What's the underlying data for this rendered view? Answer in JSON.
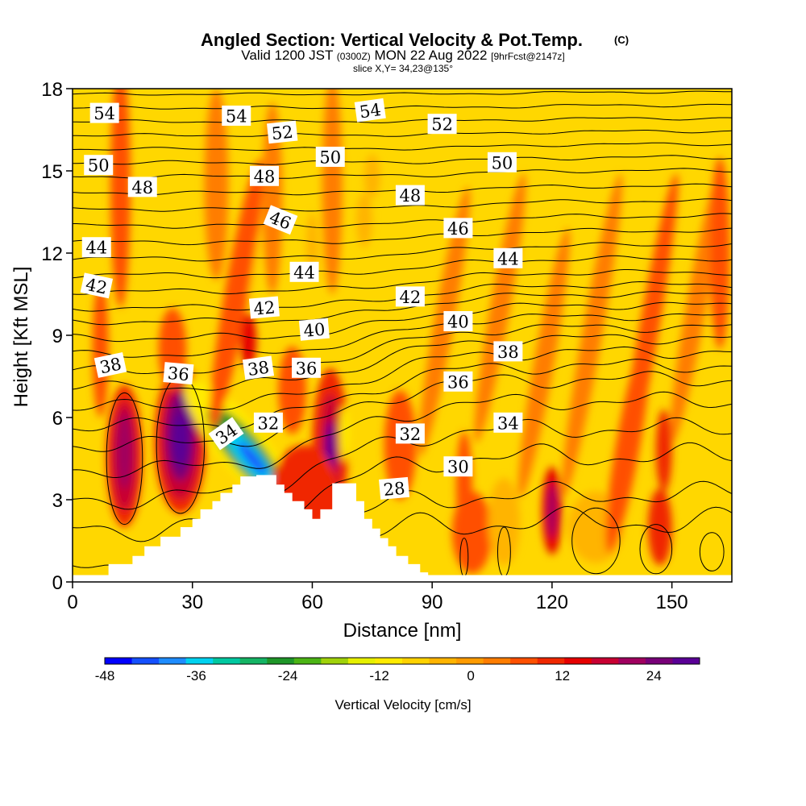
{
  "chart_data": {
    "type": "heatmap",
    "title": "Angled Section: Vertical Velocity & Pot.Temp.",
    "title_mark": "(C)",
    "subtitle_main_a": "Valid 1200 JST",
    "subtitle_small_a": "(0300Z)",
    "subtitle_main_b": "MON 22 Aug 2022",
    "subtitle_small_b": "[9hrFcst@2147z]",
    "slice": "slice X,Y= 34,23@135°",
    "xlabel": "Distance [nm]",
    "ylabel": "Height [Kft MSL]",
    "xlim": [
      0,
      165
    ],
    "ylim": [
      0,
      18
    ],
    "x_ticks": [
      {
        "value": 0,
        "label": "0"
      },
      {
        "value": 30,
        "label": "30"
      },
      {
        "value": 60,
        "label": "60"
      },
      {
        "value": 90,
        "label": "90"
      },
      {
        "value": 120,
        "label": "120"
      },
      {
        "value": 150,
        "label": "150"
      }
    ],
    "y_ticks": [
      {
        "value": 0,
        "label": "0"
      },
      {
        "value": 3,
        "label": "3"
      },
      {
        "value": 6,
        "label": "6"
      },
      {
        "value": 9,
        "label": "9"
      },
      {
        "value": 12,
        "label": "12"
      },
      {
        "value": 15,
        "label": "15"
      },
      {
        "value": 18,
        "label": "18"
      }
    ],
    "background_color": "#ffd700",
    "colorbar": {
      "label": "Vertical Velocity [cm/s]",
      "min": -48,
      "max": 30,
      "colors": [
        "#0000ff",
        "#1450ff",
        "#1e8cff",
        "#00d2f0",
        "#00c8a0",
        "#14b464",
        "#1e9628",
        "#4bb414",
        "#a0d20a",
        "#e6f000",
        "#ffeb00",
        "#ffd200",
        "#ffb400",
        "#ff9b00",
        "#ff7d00",
        "#ff5000",
        "#f02800",
        "#e60000",
        "#c80032",
        "#a0005f",
        "#780078",
        "#5a0096"
      ],
      "ticks": [
        {
          "value": -48,
          "label": "-48"
        },
        {
          "value": -36,
          "label": "-36"
        },
        {
          "value": -24,
          "label": "-24"
        },
        {
          "value": -12,
          "label": "-12"
        },
        {
          "value": 0,
          "label": "0"
        },
        {
          "value": 12,
          "label": "12"
        },
        {
          "value": 24,
          "label": "24"
        }
      ]
    },
    "terrain": [
      {
        "x": 0,
        "h": 0.25
      },
      {
        "x": 9,
        "h": 0.25
      },
      {
        "x": 9,
        "h": 0.65
      },
      {
        "x": 15,
        "h": 0.65
      },
      {
        "x": 15,
        "h": 0.95
      },
      {
        "x": 18,
        "h": 0.95
      },
      {
        "x": 18,
        "h": 1.3
      },
      {
        "x": 22,
        "h": 1.3
      },
      {
        "x": 22,
        "h": 1.65
      },
      {
        "x": 27,
        "h": 1.65
      },
      {
        "x": 27,
        "h": 2.0
      },
      {
        "x": 30,
        "h": 2.0
      },
      {
        "x": 30,
        "h": 2.3
      },
      {
        "x": 32,
        "h": 2.3
      },
      {
        "x": 32,
        "h": 2.65
      },
      {
        "x": 35,
        "h": 2.65
      },
      {
        "x": 35,
        "h": 2.95
      },
      {
        "x": 37,
        "h": 2.95
      },
      {
        "x": 37,
        "h": 3.25
      },
      {
        "x": 40,
        "h": 3.25
      },
      {
        "x": 40,
        "h": 3.55
      },
      {
        "x": 42,
        "h": 3.55
      },
      {
        "x": 42,
        "h": 3.85
      },
      {
        "x": 46,
        "h": 3.85
      },
      {
        "x": 46,
        "h": 3.9
      },
      {
        "x": 51,
        "h": 3.9
      },
      {
        "x": 51,
        "h": 3.55
      },
      {
        "x": 53,
        "h": 3.55
      },
      {
        "x": 53,
        "h": 3.25
      },
      {
        "x": 55,
        "h": 3.25
      },
      {
        "x": 55,
        "h": 2.95
      },
      {
        "x": 58,
        "h": 2.95
      },
      {
        "x": 58,
        "h": 2.65
      },
      {
        "x": 60,
        "h": 2.65
      },
      {
        "x": 60,
        "h": 2.3
      },
      {
        "x": 62,
        "h": 2.3
      },
      {
        "x": 62,
        "h": 2.65
      },
      {
        "x": 65,
        "h": 2.65
      },
      {
        "x": 65,
        "h": 3.6
      },
      {
        "x": 71,
        "h": 3.6
      },
      {
        "x": 71,
        "h": 2.95
      },
      {
        "x": 73,
        "h": 2.95
      },
      {
        "x": 73,
        "h": 2.3
      },
      {
        "x": 75,
        "h": 2.3
      },
      {
        "x": 75,
        "h": 1.95
      },
      {
        "x": 77,
        "h": 1.95
      },
      {
        "x": 77,
        "h": 1.6
      },
      {
        "x": 79,
        "h": 1.6
      },
      {
        "x": 79,
        "h": 1.3
      },
      {
        "x": 81,
        "h": 1.3
      },
      {
        "x": 81,
        "h": 0.95
      },
      {
        "x": 84,
        "h": 0.95
      },
      {
        "x": 84,
        "h": 0.65
      },
      {
        "x": 87,
        "h": 0.65
      },
      {
        "x": 87,
        "h": 0.35
      },
      {
        "x": 89,
        "h": 0.35
      },
      {
        "x": 89,
        "h": 0.25
      },
      {
        "x": 165,
        "h": 0.25
      }
    ],
    "velocity_cells": [
      {
        "x": 13,
        "y": 4.6,
        "rx": 4.5,
        "ry": 2.6,
        "w": 10,
        "rot": 0
      },
      {
        "x": 13,
        "y": 4.6,
        "rx": 3.2,
        "ry": 2.0,
        "w": 16,
        "rot": 0
      },
      {
        "x": 13,
        "y": 4.8,
        "rx": 1.8,
        "ry": 1.4,
        "w": 20,
        "rot": 0
      },
      {
        "x": 27,
        "y": 5.2,
        "rx": 6.5,
        "ry": 2.7,
        "w": 12,
        "rot": 0
      },
      {
        "x": 27,
        "y": 5.2,
        "rx": 5.0,
        "ry": 2.2,
        "w": 18,
        "rot": 0
      },
      {
        "x": 27,
        "y": 5.3,
        "rx": 3.5,
        "ry": 1.6,
        "w": 24,
        "rot": 0
      },
      {
        "x": 27,
        "y": 5.2,
        "rx": 2.0,
        "ry": 1.0,
        "w": 28,
        "rot": 0
      },
      {
        "x": 42,
        "y": 5.0,
        "rx": 6,
        "ry": 3.0,
        "w": -12,
        "rot": -40
      },
      {
        "x": 43,
        "y": 4.8,
        "rx": 4.2,
        "ry": 2.0,
        "w": -24,
        "rot": -40
      },
      {
        "x": 44,
        "y": 4.6,
        "rx": 2.6,
        "ry": 1.3,
        "w": -36,
        "rot": -40
      },
      {
        "x": 45,
        "y": 4.5,
        "rx": 1.4,
        "ry": 0.8,
        "w": -44,
        "rot": -40
      },
      {
        "x": 64.5,
        "y": 5.0,
        "rx": 4.5,
        "ry": 2.8,
        "w": 10,
        "rot": 0
      },
      {
        "x": 64.5,
        "y": 4.9,
        "rx": 2.5,
        "ry": 2.0,
        "w": 18,
        "rot": 0
      },
      {
        "x": 64.5,
        "y": 4.7,
        "rx": 1.2,
        "ry": 1.2,
        "w": 28,
        "rot": 0
      },
      {
        "x": 58,
        "y": 3.4,
        "rx": 8,
        "ry": 1.6,
        "w": 10,
        "rot": 0
      },
      {
        "x": 68,
        "y": 5.4,
        "rx": 1.2,
        "ry": 1.0,
        "w": -12,
        "rot": 0
      },
      {
        "x": 44,
        "y": 12.0,
        "rx": 2.8,
        "ry": 1.6,
        "w": -8,
        "rot": 0
      },
      {
        "x": 44,
        "y": 12.0,
        "rx": 1.3,
        "ry": 0.9,
        "w": -14,
        "rot": 0
      },
      {
        "x": 41,
        "y": 10.5,
        "rx": 3,
        "ry": 5,
        "w": 8,
        "rot": 10
      },
      {
        "x": 44,
        "y": 8.8,
        "rx": 2,
        "ry": 1.0,
        "w": 14,
        "rot": 0
      },
      {
        "x": 120,
        "y": 2.6,
        "rx": 2.5,
        "ry": 1.6,
        "w": 14,
        "rot": 0
      },
      {
        "x": 120,
        "y": 2.6,
        "rx": 1.2,
        "ry": 1.0,
        "w": 20,
        "rot": 0
      },
      {
        "x": 131,
        "y": 2.0,
        "rx": 7,
        "ry": 1.3,
        "w": -4,
        "rot": 0
      },
      {
        "x": 100,
        "y": 1.8,
        "rx": 5,
        "ry": 1.5,
        "w": 6,
        "rot": 0
      },
      {
        "x": 108,
        "y": 2.2,
        "rx": 4,
        "ry": 1.6,
        "w": -3,
        "rot": 0
      },
      {
        "x": 147,
        "y": 2.0,
        "rx": 3,
        "ry": 1.4,
        "w": 10,
        "rot": 0
      },
      {
        "x": 73,
        "y": 13.2,
        "rx": 2,
        "ry": 1.0,
        "w": -3,
        "rot": 0
      },
      {
        "x": 75,
        "y": 14.8,
        "rx": 2,
        "ry": 0.8,
        "w": -3,
        "rot": 0
      },
      {
        "x": 60,
        "y": 12.3,
        "rx": 1.5,
        "ry": 1.2,
        "w": -2,
        "rot": 0
      },
      {
        "x": 12,
        "y": 14.5,
        "rx": 2.5,
        "ry": 4.5,
        "w": 6,
        "rot": 0
      },
      {
        "x": 36,
        "y": 14.5,
        "rx": 3,
        "ry": 3.5,
        "w": 5,
        "rot": 0
      },
      {
        "x": 50,
        "y": 14.0,
        "rx": 2.5,
        "ry": 3.5,
        "w": 5,
        "rot": 0
      },
      {
        "x": 65,
        "y": 14.5,
        "rx": 2.5,
        "ry": 4,
        "w": 5,
        "rot": 0
      },
      {
        "x": 93,
        "y": 9.5,
        "rx": 2.5,
        "ry": 5,
        "w": 5,
        "rot": 10
      },
      {
        "x": 107,
        "y": 10.0,
        "rx": 2.5,
        "ry": 5,
        "w": 5,
        "rot": 10
      },
      {
        "x": 118,
        "y": 8.0,
        "rx": 2.5,
        "ry": 5,
        "w": 5,
        "rot": 10
      },
      {
        "x": 130,
        "y": 9.0,
        "rx": 2.5,
        "ry": 6,
        "w": 5,
        "rot": 10
      },
      {
        "x": 144,
        "y": 9.0,
        "rx": 2.5,
        "ry": 6,
        "w": 6,
        "rot": 10
      },
      {
        "x": 156,
        "y": 10.0,
        "rx": 2.5,
        "ry": 5,
        "w": 5,
        "rot": 10
      },
      {
        "x": 139,
        "y": 5.0,
        "rx": 3,
        "ry": 4,
        "w": 6,
        "rot": 10
      },
      {
        "x": 98,
        "y": 3.5,
        "rx": 2,
        "ry": 2,
        "w": 8,
        "rot": 0
      },
      {
        "x": 148,
        "y": 4.8,
        "rx": 2,
        "ry": 1.5,
        "w": 10,
        "rot": 0
      },
      {
        "x": 7,
        "y": 8.5,
        "rx": 2,
        "ry": 2.5,
        "w": 8,
        "rot": 0
      },
      {
        "x": 25,
        "y": 8.5,
        "rx": 3.5,
        "ry": 1.5,
        "w": 6,
        "rot": 0
      },
      {
        "x": 55,
        "y": 7.0,
        "rx": 3.5,
        "ry": 1.6,
        "w": 6,
        "rot": 0
      },
      {
        "x": 82,
        "y": 5.0,
        "rx": 4,
        "ry": 2,
        "w": 6,
        "rot": 0
      },
      {
        "x": 162,
        "y": 12.0,
        "rx": 2.5,
        "ry": 3.5,
        "w": 7,
        "rot": 0
      }
    ],
    "theta_levels": [
      {
        "theta": 28,
        "y0": -0.8,
        "x1": 58,
        "b": 3.0,
        "s": 11,
        "amp": 0.35
      },
      {
        "theta": 29,
        "y0": 0.4,
        "x1": 60,
        "b": 2.8,
        "s": 11,
        "amp": 0.3
      },
      {
        "theta": 30,
        "y0": 1.9,
        "x1": 62,
        "b": 2.7,
        "s": 11,
        "amp": 0.3
      },
      {
        "theta": 31,
        "y0": 3.0,
        "x1": 64,
        "b": 2.6,
        "s": 11,
        "amp": 0.25
      },
      {
        "theta": 32,
        "y0": 4.1,
        "x1": 66,
        "b": 2.5,
        "s": 11,
        "amp": 0.22
      },
      {
        "theta": 33,
        "y0": 5.0,
        "x1": 68,
        "b": 2.4,
        "s": 11,
        "amp": 0.2
      },
      {
        "theta": 34,
        "y0": 5.7,
        "x1": 70,
        "b": 2.2,
        "s": 11,
        "amp": 0.18
      },
      {
        "theta": 35,
        "y0": 6.4,
        "x1": 72,
        "b": 2.0,
        "s": 11,
        "amp": 0.16
      },
      {
        "theta": 36,
        "y0": 7.1,
        "x1": 74,
        "b": 1.8,
        "s": 11,
        "amp": 0.14
      },
      {
        "theta": 37,
        "y0": 7.7,
        "x1": 76,
        "b": 1.6,
        "s": 11,
        "amp": 0.12
      },
      {
        "theta": 38,
        "y0": 8.3,
        "x1": 78,
        "b": 1.4,
        "s": 11,
        "amp": 0.1
      },
      {
        "theta": 39,
        "y0": 8.9,
        "x1": 80,
        "b": 1.2,
        "s": 11,
        "amp": 0.1
      },
      {
        "theta": 40,
        "y0": 9.5,
        "x1": 82,
        "b": 1.0,
        "s": 11,
        "amp": 0.08
      },
      {
        "theta": 41,
        "y0": 10.0,
        "x1": 84,
        "b": 0.85,
        "s": 11,
        "amp": 0.08
      },
      {
        "theta": 42,
        "y0": 10.6,
        "x1": 86,
        "b": 0.7,
        "s": 11,
        "amp": 0.07
      },
      {
        "theta": 43,
        "y0": 11.2,
        "x1": 88,
        "b": 0.6,
        "s": 11,
        "amp": 0.07
      },
      {
        "theta": 44,
        "y0": 11.8,
        "x1": 90,
        "b": 0.5,
        "s": 11,
        "amp": 0.06
      },
      {
        "theta": 45,
        "y0": 12.4,
        "x1": 92,
        "b": 0.42,
        "s": 11,
        "amp": 0.06
      },
      {
        "theta": 46,
        "y0": 13.0,
        "x1": 94,
        "b": 0.35,
        "s": 11,
        "amp": 0.06
      },
      {
        "theta": 47,
        "y0": 13.6,
        "x1": 96,
        "b": 0.3,
        "s": 11,
        "amp": 0.05
      },
      {
        "theta": 48,
        "y0": 14.2,
        "x1": 98,
        "b": 0.25,
        "s": 11,
        "amp": 0.05
      },
      {
        "theta": 49,
        "y0": 14.8,
        "x1": 100,
        "b": 0.22,
        "s": 11,
        "amp": 0.05
      },
      {
        "theta": 50,
        "y0": 15.3,
        "x1": 102,
        "b": 0.2,
        "s": 11,
        "amp": 0.05
      },
      {
        "theta": 51,
        "y0": 15.8,
        "x1": 104,
        "b": 0.18,
        "s": 11,
        "amp": 0.04
      },
      {
        "theta": 52,
        "y0": 16.3,
        "x1": 106,
        "b": 0.15,
        "s": 11,
        "amp": 0.04
      },
      {
        "theta": 53,
        "y0": 16.8,
        "x1": 108,
        "b": 0.12,
        "s": 11,
        "amp": 0.04
      },
      {
        "theta": 54,
        "y0": 17.3,
        "x1": 110,
        "b": 0.1,
        "s": 11,
        "amp": 0.04
      },
      {
        "theta": 55,
        "y0": 17.8,
        "x1": 112,
        "b": 0.08,
        "s": 11,
        "amp": 0.03
      }
    ],
    "contour_labels": [
      {
        "text": "54",
        "x": 8,
        "y": 17.1,
        "rot": 0
      },
      {
        "text": "54",
        "x": 41,
        "y": 17.0,
        "rot": 0
      },
      {
        "text": "54",
        "x": 74.5,
        "y": 17.2,
        "rot": -8
      },
      {
        "text": "52",
        "x": 52.5,
        "y": 16.4,
        "rot": -6
      },
      {
        "text": "52",
        "x": 92.5,
        "y": 16.7,
        "rot": 0
      },
      {
        "text": "50",
        "x": 6.5,
        "y": 15.2,
        "rot": 0
      },
      {
        "text": "50",
        "x": 64.5,
        "y": 15.5,
        "rot": 0
      },
      {
        "text": "50",
        "x": 107.5,
        "y": 15.3,
        "rot": 0
      },
      {
        "text": "48",
        "x": 17.5,
        "y": 14.4,
        "rot": 0
      },
      {
        "text": "48",
        "x": 48,
        "y": 14.8,
        "rot": 0
      },
      {
        "text": "48",
        "x": 84.5,
        "y": 14.1,
        "rot": 0
      },
      {
        "text": "46",
        "x": 52,
        "y": 13.2,
        "rot": 22
      },
      {
        "text": "46",
        "x": 96.5,
        "y": 12.9,
        "rot": 0
      },
      {
        "text": "44",
        "x": 6,
        "y": 12.2,
        "rot": 0
      },
      {
        "text": "44",
        "x": 58,
        "y": 11.3,
        "rot": 0
      },
      {
        "text": "44",
        "x": 109,
        "y": 11.8,
        "rot": 0
      },
      {
        "text": "42",
        "x": 6,
        "y": 10.8,
        "rot": 12
      },
      {
        "text": "42",
        "x": 48,
        "y": 10.0,
        "rot": -5
      },
      {
        "text": "42",
        "x": 84.5,
        "y": 10.4,
        "rot": 0
      },
      {
        "text": "40",
        "x": 60.5,
        "y": 9.2,
        "rot": -5
      },
      {
        "text": "40",
        "x": 96.5,
        "y": 9.5,
        "rot": 0
      },
      {
        "text": "38",
        "x": 9.5,
        "y": 7.9,
        "rot": -12
      },
      {
        "text": "38",
        "x": 46.5,
        "y": 7.8,
        "rot": -8
      },
      {
        "text": "38",
        "x": 109,
        "y": 8.4,
        "rot": 0
      },
      {
        "text": "36",
        "x": 26.5,
        "y": 7.6,
        "rot": 5
      },
      {
        "text": "36",
        "x": 58.5,
        "y": 7.8,
        "rot": 0
      },
      {
        "text": "36",
        "x": 96.5,
        "y": 7.3,
        "rot": 0
      },
      {
        "text": "34",
        "x": 38.5,
        "y": 5.4,
        "rot": -35
      },
      {
        "text": "34",
        "x": 109,
        "y": 5.8,
        "rot": 0
      },
      {
        "text": "32",
        "x": 49,
        "y": 5.8,
        "rot": 0
      },
      {
        "text": "32",
        "x": 84.5,
        "y": 5.4,
        "rot": 0
      },
      {
        "text": "30",
        "x": 96.5,
        "y": 4.2,
        "rot": 0
      },
      {
        "text": "28",
        "x": 80.5,
        "y": 3.4,
        "rot": -5
      }
    ]
  }
}
